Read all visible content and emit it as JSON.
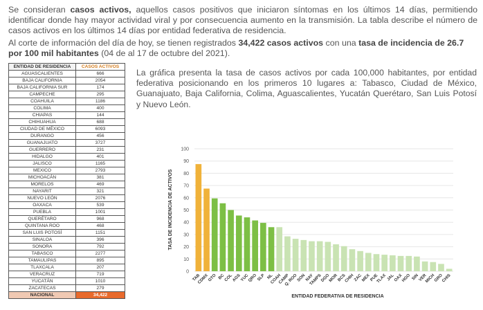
{
  "intro": {
    "p1_a": "Se consideran ",
    "p1_b": "casos activos,",
    "p1_c": " aquellos casos positivos que iniciaron síntomas en los últimos 14 días, permitiendo identificar donde hay mayor actividad viral y por consecuencia aumento en la transmisión. La tabla describe el número de casos activos en los últimos 14 días por entidad federativa de residencia.",
    "p2_a": "Al corte de información del día de hoy, se tienen registrados ",
    "p2_b": "34,422 casos activos",
    "p2_c": " con una ",
    "p2_d": "tasa de incidencia de 26.7 por 100 mil habitantes",
    "p2_e": " (04 de al 17 de octubre del 2021)."
  },
  "description": "La gráfica presenta la tasa de casos activos por cada 100,000 habitantes, por entidad federativa posicionando en los primeros 10 lugares a: Tabasco, Ciudad de México, Guanajuato, Baja California, Colima, Aguascalientes, Yucatán Querétaro, San Luis Potosí y Nuevo León.",
  "table": {
    "headers": [
      "ENTIDAD DE RESIDENCIA",
      "CASOS ACTIVOS"
    ],
    "rows": [
      [
        "AGUASCALIENTES",
        "666"
      ],
      [
        "BAJA CALIFORNIA",
        "2054"
      ],
      [
        "BAJA CALIFORNIA SUR",
        "174"
      ],
      [
        "CAMPECHE",
        "295"
      ],
      [
        "COAHUILA",
        "1186"
      ],
      [
        "COLIMA",
        "400"
      ],
      [
        "CHIAPAS",
        "144"
      ],
      [
        "CHIHUAHUA",
        "688"
      ],
      [
        "CIUDAD DE MÉXICO",
        "6093"
      ],
      [
        "DURANGO",
        "456"
      ],
      [
        "GUANAJUATO",
        "3727"
      ],
      [
        "GUERRERO",
        "231"
      ],
      [
        "HIDALGO",
        "401"
      ],
      [
        "JALISCO",
        "1165"
      ],
      [
        "MEXICO",
        "2793"
      ],
      [
        "MICHOACÁN",
        "381"
      ],
      [
        "MORELOS",
        "469"
      ],
      [
        "NAYARIT",
        "321"
      ],
      [
        "NUEVO LEÓN",
        "2076"
      ],
      [
        "OAXACA",
        "539"
      ],
      [
        "PUEBLA",
        "1001"
      ],
      [
        "QUERÉTARO",
        "968"
      ],
      [
        "QUINTANA ROO",
        "468"
      ],
      [
        "SAN LUIS POTOSÍ",
        "1151"
      ],
      [
        "SINALOA",
        "396"
      ],
      [
        "SONORA",
        "792"
      ],
      [
        "TABASCO",
        "2277"
      ],
      [
        "TAMAULIPAS",
        "895"
      ],
      [
        "TLAXCALA",
        "207"
      ],
      [
        "VERACRUZ",
        "719"
      ],
      [
        "YUCATÁN",
        "1010"
      ],
      [
        "ZACATECAS",
        "279"
      ]
    ],
    "total": [
      "NACIONAL",
      "34,422"
    ]
  },
  "colors": {
    "top2": "#f0b23a",
    "top10": "#7dbf45",
    "rest": "#c9e3b3",
    "axis_text": "#555555",
    "grid": "#e6e6e6"
  },
  "chart_data": {
    "type": "bar",
    "title": "",
    "xlabel": "ENTIDAD FEDERATIVA DE RESIDENCIA",
    "ylabel": "TASA DE INCIDENCIA DE ACTIVOS",
    "ylim": [
      0,
      100
    ],
    "yticks": [
      0,
      10,
      20,
      30,
      40,
      50,
      60,
      70,
      80,
      90,
      100
    ],
    "categories": [
      "TAB",
      "CDMX",
      "GTO",
      "BC",
      "COL",
      "AGS",
      "YUC",
      "QRO",
      "SLP",
      "NL",
      "COAH",
      "CAMP",
      "Q. ROO",
      "SON",
      "NAY",
      "TAMPS",
      "DGO",
      "MOR",
      "BCS",
      "CHIH",
      "ZAC",
      "MEX",
      "PUE",
      "TLAX",
      "JAL",
      "OAX",
      "HGO",
      "SIN",
      "VER",
      "MICH",
      "GRO",
      "CHIS"
    ],
    "values": [
      87.5,
      67.5,
      59.5,
      55.5,
      50,
      45.5,
      44,
      41.5,
      39.5,
      36,
      36,
      28.5,
      26.5,
      25.5,
      24.5,
      24.5,
      24,
      22,
      20.5,
      18,
      16.5,
      15,
      14,
      13.5,
      13,
      12.5,
      12.5,
      12,
      8,
      7.5,
      6,
      2
    ],
    "groups": [
      "top2",
      "top2",
      "top10",
      "top10",
      "top10",
      "top10",
      "top10",
      "top10",
      "top10",
      "top10",
      "rest",
      "rest",
      "rest",
      "rest",
      "rest",
      "rest",
      "rest",
      "rest",
      "rest",
      "rest",
      "rest",
      "rest",
      "rest",
      "rest",
      "rest",
      "rest",
      "rest",
      "rest",
      "rest",
      "rest",
      "rest",
      "rest"
    ]
  }
}
